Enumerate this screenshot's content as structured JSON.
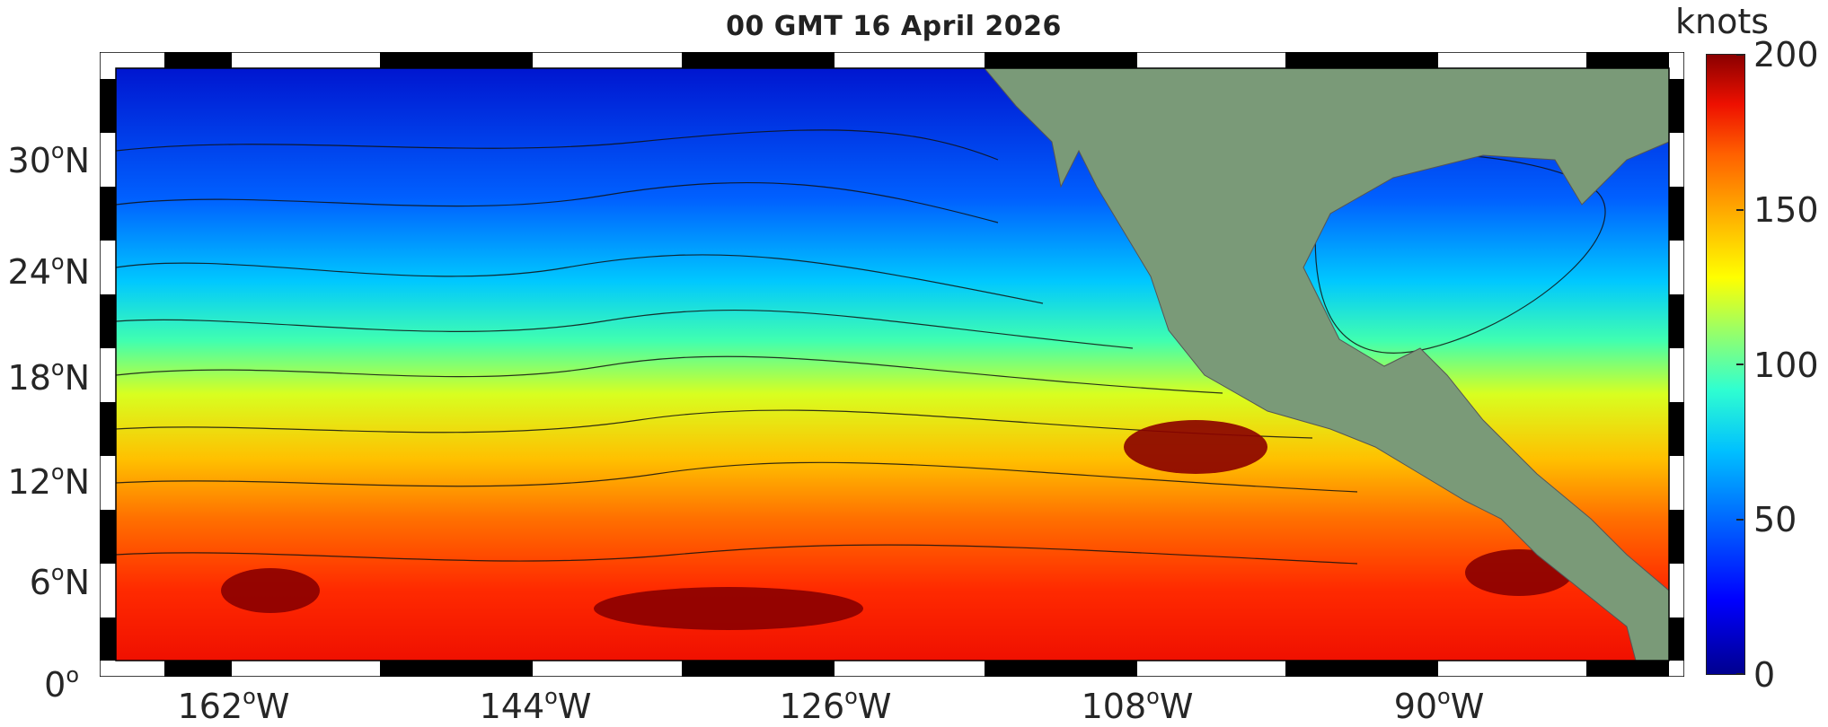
{
  "title": "00 GMT 16 April 2026",
  "colorbar": {
    "units": "knots",
    "ticks": [
      "0",
      "50",
      "100",
      "150",
      "200"
    ],
    "colors": [
      "#00008f",
      "#0000ff",
      "#0060ff",
      "#00c0ff",
      "#30ffd0",
      "#a0ff60",
      "#ffff00",
      "#ffb000",
      "#ff6000",
      "#ee1000",
      "#8a0000"
    ]
  },
  "lat_labels": [
    {
      "text": "30",
      "suffix": "N"
    },
    {
      "text": "24",
      "suffix": "N"
    },
    {
      "text": "18",
      "suffix": "N"
    },
    {
      "text": "12",
      "suffix": "N"
    },
    {
      "text": "6",
      "suffix": "N"
    },
    {
      "text": "0",
      "suffix": ""
    }
  ],
  "lon_labels": [
    {
      "text": "162",
      "suffix": "W"
    },
    {
      "text": "144",
      "suffix": "W"
    },
    {
      "text": "126",
      "suffix": "W"
    },
    {
      "text": "108",
      "suffix": "W"
    },
    {
      "text": "90",
      "suffix": "W"
    }
  ],
  "land_color": "#7a9a78"
}
